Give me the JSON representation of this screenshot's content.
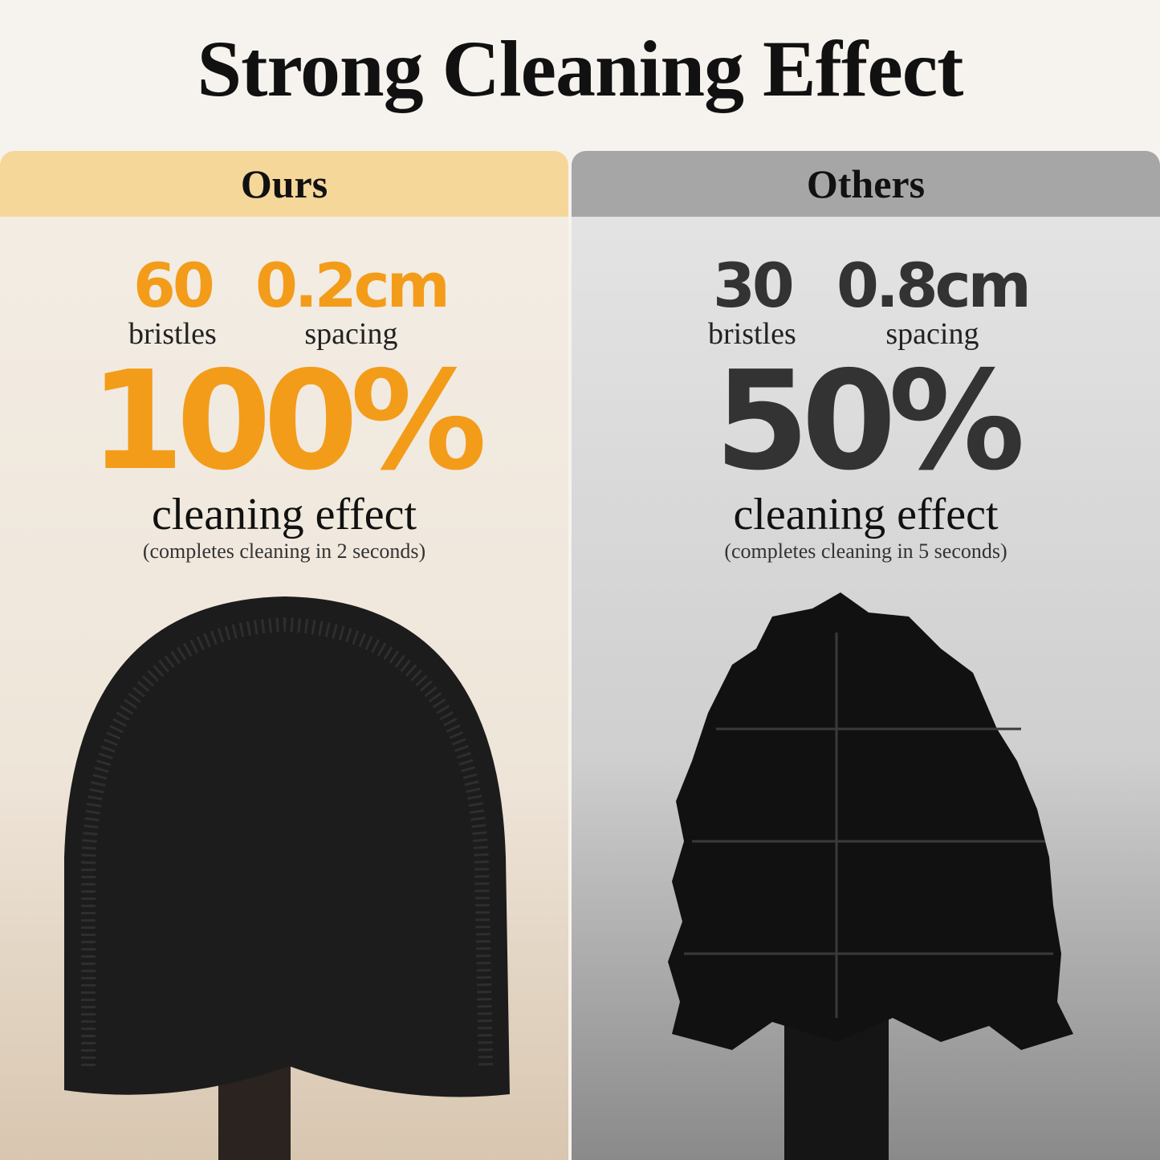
{
  "title": "Strong Cleaning Effect",
  "colors": {
    "accent": "#f39c1a",
    "dark": "#333333"
  },
  "ours": {
    "label": "Ours",
    "bristles_value": "60",
    "bristles_label": "bristles",
    "spacing_value": "0.2cm",
    "spacing_label": "spacing",
    "effect_percent": "100%",
    "effect_label": "cleaning effect",
    "effect_note": "(completes cleaning in 2 seconds)"
  },
  "others": {
    "label": "Others",
    "bristles_value": "30",
    "bristles_label": "bristles",
    "spacing_value": "0.8cm",
    "spacing_label": "spacing",
    "effect_percent": "50%",
    "effect_label": "cleaning effect",
    "effect_note": "(completes cleaning in 5 seconds)"
  }
}
